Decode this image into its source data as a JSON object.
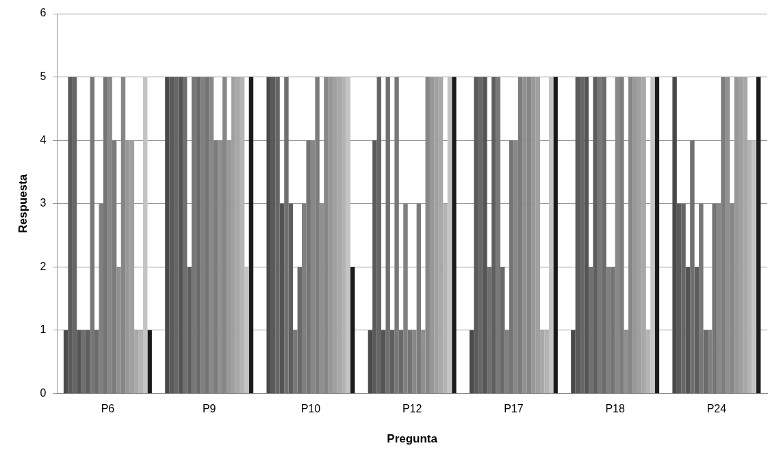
{
  "chart_data": {
    "type": "bar",
    "xlabel": "Pregunta",
    "ylabel": "Respuesta",
    "categories": [
      "P6",
      "P9",
      "P10",
      "P12",
      "P17",
      "P18",
      "P24"
    ],
    "ylim": [
      0,
      6
    ],
    "yticks": [
      0,
      1,
      2,
      3,
      4,
      5,
      6
    ],
    "grid": "y",
    "legend": false,
    "series": [
      {
        "color": "#4a4a4a",
        "values": [
          1,
          5,
          5,
          1,
          1,
          1,
          5
        ]
      },
      {
        "color": "#5a5a5a",
        "values": [
          5,
          5,
          5,
          4,
          5,
          5,
          3
        ]
      },
      {
        "color": "#666666",
        "values": [
          5,
          5,
          5,
          5,
          5,
          5,
          3
        ]
      },
      {
        "color": "#545454",
        "values": [
          1,
          5,
          3,
          1,
          5,
          5,
          2
        ]
      },
      {
        "color": "#707070",
        "values": [
          1,
          5,
          5,
          5,
          2,
          2,
          4
        ]
      },
      {
        "color": "#5e5e5e",
        "values": [
          1,
          2,
          3,
          1,
          5,
          5,
          2
        ]
      },
      {
        "color": "#787878",
        "values": [
          5,
          5,
          1,
          5,
          5,
          5,
          3
        ]
      },
      {
        "color": "#6a6a6a",
        "values": [
          1,
          5,
          2,
          1,
          2,
          5,
          1
        ]
      },
      {
        "color": "#808080",
        "values": [
          3,
          5,
          3,
          3,
          1,
          2,
          1
        ]
      },
      {
        "color": "#747474",
        "values": [
          5,
          5,
          4,
          1,
          4,
          2,
          3
        ]
      },
      {
        "color": "#888888",
        "values": [
          5,
          5,
          4,
          1,
          4,
          5,
          3
        ]
      },
      {
        "color": "#7c7c7c",
        "values": [
          4,
          4,
          5,
          3,
          5,
          5,
          5
        ]
      },
      {
        "color": "#909090",
        "values": [
          2,
          4,
          3,
          1,
          5,
          1,
          5
        ]
      },
      {
        "color": "#868686",
        "values": [
          5,
          5,
          5,
          5,
          5,
          5,
          3
        ]
      },
      {
        "color": "#989898",
        "values": [
          4,
          4,
          5,
          5,
          5,
          5,
          5
        ]
      },
      {
        "color": "#a0a0a0",
        "values": [
          4,
          5,
          5,
          5,
          5,
          5,
          5
        ]
      },
      {
        "color": "#a8a8a8",
        "values": [
          1,
          5,
          5,
          5,
          1,
          5,
          5
        ]
      },
      {
        "color": "#b4b4b4",
        "values": [
          1,
          5,
          5,
          3,
          1,
          1,
          4
        ]
      },
      {
        "color": "#c4c4c4",
        "values": [
          5,
          2,
          5,
          5,
          5,
          5,
          4
        ]
      },
      {
        "color": "#1a1a1a",
        "values": [
          1,
          5,
          2,
          5,
          5,
          5,
          5
        ]
      }
    ]
  }
}
